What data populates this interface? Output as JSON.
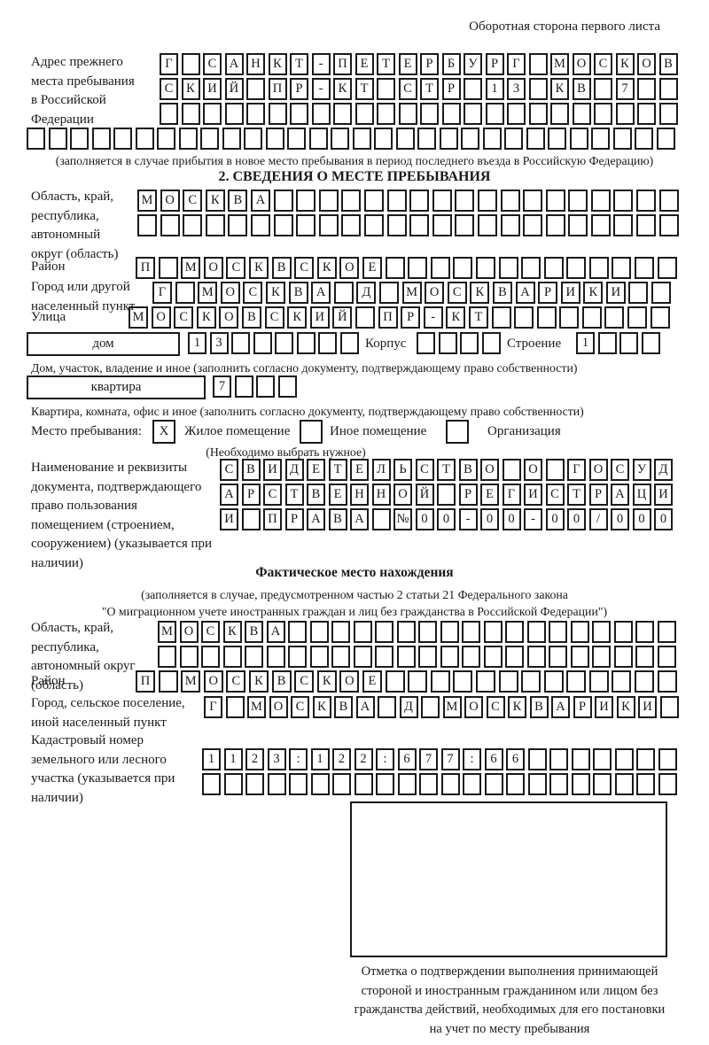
{
  "header": {
    "title": "Оборотная сторона первого листа"
  },
  "prev_address": {
    "label": "Адрес прежнего места пребывания в Российской Федерации",
    "rows": [
      {
        "len": 24,
        "text": "Г САНКТ-ПЕТЕРБУРГ МОСКОВ"
      },
      {
        "len": 24,
        "text": "СКИЙ ПР-КТ СТР 13 КВ 7"
      },
      {
        "len": 24,
        "text": ""
      }
    ],
    "overflow_row": {
      "len": 30,
      "text": ""
    },
    "note": "(заполняется в случае прибытия в новое место пребывания в период последнего въезда в Российскую Федерацию)"
  },
  "section2": {
    "title": "2. СВЕДЕНИЯ О МЕСТЕ ПРЕБЫВАНИЯ",
    "region": {
      "label": "Область, край, республика, автономный округ (область)",
      "rows": [
        {
          "len": 24,
          "text": "МОСКВА"
        },
        {
          "len": 24,
          "text": ""
        }
      ]
    },
    "district": {
      "label": "Район",
      "row": {
        "len": 24,
        "text": "П МОСКВСКОЕ"
      }
    },
    "city": {
      "label": "Город или другой населенный пункт",
      "row": {
        "len": 23,
        "text": "Г МОСКВА Д МОСКВАРИКИ"
      }
    },
    "street": {
      "label": "Улица",
      "row": {
        "len": 24,
        "text": "МОСКОВСКИЙ ПР-КТ"
      }
    },
    "house": {
      "label": "дом",
      "row": {
        "len": 8,
        "text": "13"
      },
      "korpus_label": "Корпус",
      "korpus_row": {
        "len": 4,
        "text": ""
      },
      "stroenie_label": "Строение",
      "stroenie_row": {
        "len": 4,
        "text": "1"
      },
      "note": "Дом, участок, владение и иное (заполнить согласно документу, подтверждающему право собственности)"
    },
    "apartment": {
      "label": "квартира",
      "row": {
        "len": 4,
        "text": "7"
      },
      "note": "Квартира, комната, офис и иное (заполнить согласно документу, подтверждающему право собственности)"
    },
    "stay_type": {
      "label": "Место пребывания:",
      "options": [
        {
          "mark": "X",
          "label": "Жилое помещение"
        },
        {
          "mark": "",
          "label": "Иное помещение"
        },
        {
          "mark": "",
          "label": "Организация"
        }
      ],
      "note": "(Необходимо выбрать нужное)"
    },
    "document": {
      "label": "Наименование и реквизиты документа, подтверждающего право пользования помещением (строением, сооружением) (указывается при наличии)",
      "rows": [
        {
          "len": 21,
          "text": "СВИДЕТЕЛЬСТВО О ГОСУД"
        },
        {
          "len": 21,
          "text": "АРСТВЕННОЙ РЕГИСТРАЦИ"
        },
        {
          "len": 21,
          "text": "И ПРАВА №00-00-00/000"
        }
      ]
    }
  },
  "actual_location": {
    "title": "Фактическое место нахождения",
    "note_lines": [
      "(заполняется в случае, предусмотренном частью 2 статьи 21 Федерального закона",
      "\"О миграционном учете иностранных граждан и лиц без гражданства в Российской Федерации\")"
    ],
    "region": {
      "label": "Область, край, республика, автономный округ (область)",
      "rows": [
        {
          "len": 24,
          "text": "МОСКВА"
        },
        {
          "len": 24,
          "text": ""
        }
      ]
    },
    "district": {
      "label": "Район",
      "row": {
        "len": 24,
        "text": "П МОСКВСКОЕ"
      }
    },
    "settlement": {
      "label": "Город, сельское поселение, иной населенный пункт",
      "row": {
        "len": 22,
        "text": "Г МОСКВА Д МОСКВАРИКИ"
      }
    },
    "cadastral": {
      "label": "Кадастровый номер земельного или лесного участка (указывается при наличии)",
      "rows": [
        {
          "len": 22,
          "text": "1123:122:677:66"
        },
        {
          "len": 22,
          "text": ""
        }
      ]
    }
  },
  "confirmation": {
    "caption_lines": [
      "Отметка о подтверждении выполнения принимающей",
      "стороной и иностранным гражданином или лицом без",
      "гражданства действий, необходимых для его постановки",
      "на учет по месту пребывания"
    ]
  }
}
